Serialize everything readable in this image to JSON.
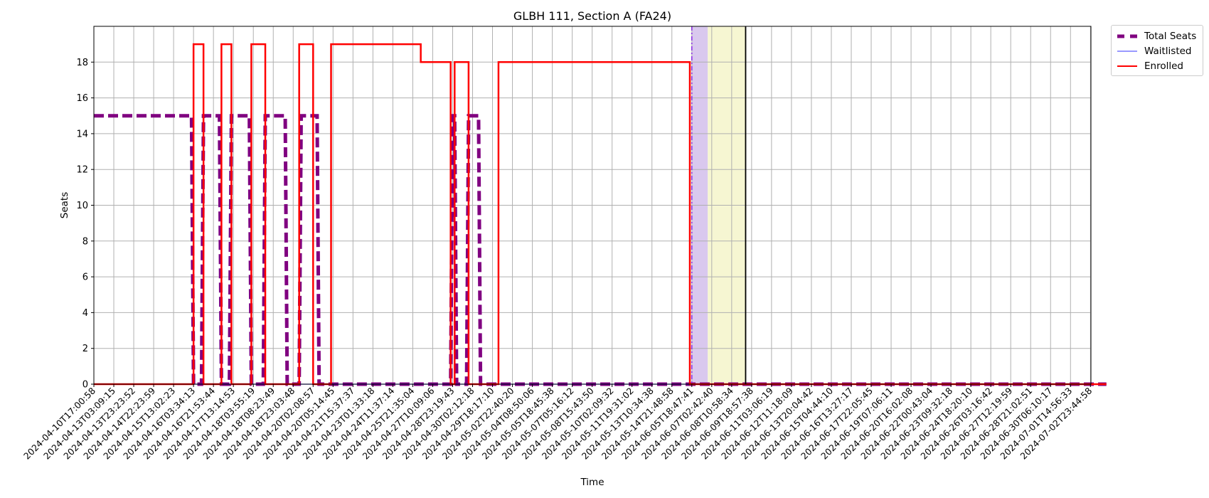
{
  "chart_data": {
    "type": "line",
    "title": "GLBH 111, Section A (FA24)",
    "xlabel": "Time",
    "ylabel": "Seats",
    "ylim": [
      0,
      20
    ],
    "yticks": [
      0,
      2,
      4,
      6,
      8,
      10,
      12,
      14,
      16,
      18
    ],
    "grid": true,
    "legend_position": "outside-top-right",
    "x_ticks": [
      "2024-04-10T17:00:58",
      "2024-04-13T03:09:15",
      "2024-04-13T23:23:52",
      "2024-04-14T22:23:59",
      "2024-04-15T13:02:23",
      "2024-04-16T03:34:13",
      "2024-04-16T21:53:44",
      "2024-04-17T13:14:53",
      "2024-04-18T03:55:19",
      "2024-04-18T08:23:49",
      "2024-04-18T23:03:48",
      "2024-04-20T02:08:57",
      "2024-04-20T05:14:45",
      "2024-04-21T15:37:37",
      "2024-04-23T01:33:18",
      "2024-04-24T11:37:14",
      "2024-04-25T21:35:04",
      "2024-04-27T10:09:06",
      "2024-04-28T23:19:43",
      "2024-04-30T02:12:18",
      "2024-04-29T18:17:10",
      "2024-05-02T22:40:20",
      "2024-05-04T08:50:06",
      "2024-05-05T18:45:38",
      "2024-05-07T05:16:12",
      "2024-05-08T15:43:50",
      "2024-05-10T02:09:32",
      "2024-05-11T19:31:02",
      "2024-05-13T10:34:38",
      "2024-05-14T21:48:58",
      "2024-06-05T18:47:41",
      "2024-06-07T02:42:40",
      "2024-06-08T10:58:34",
      "2024-06-09T18:57:38",
      "2024-06-11T03:06:19",
      "2024-06-12T11:18:09",
      "2024-06-13T20:04:42",
      "2024-06-15T04:44:10",
      "2024-06-16T13:27:17",
      "2024-06-17T22:05:45",
      "2024-06-19T07:06:11",
      "2024-06-20T16:02:08",
      "2024-06-22T00:43:04",
      "2024-06-23T09:32:18",
      "2024-06-24T18:20:10",
      "2024-06-26T03:16:42",
      "2024-06-27T12:19:59",
      "2024-06-28T21:02:51",
      "2024-06-30T06:10:17",
      "2024-07-01T14:56:33",
      "2024-07-02T23:44:58"
    ],
    "series": [
      {
        "name": "Total Seats",
        "color": "#800080",
        "style": "dashed-thick",
        "x_index": [
          0,
          4.9,
          5.0,
          5.4,
          5.5,
          6.3,
          6.4,
          6.8,
          6.9,
          7.8,
          7.9,
          8.5,
          8.6,
          9.6,
          9.7,
          10.3,
          10.4,
          11.2,
          11.3,
          17.9,
          18.0,
          18.1,
          18.2,
          18.7,
          18.8,
          19.3,
          19.4,
          20.3,
          20.4,
          50.8
        ],
        "values": [
          15,
          15,
          0,
          0,
          15,
          15,
          0,
          0,
          15,
          15,
          0,
          0,
          15,
          15,
          0,
          0,
          15,
          15,
          0,
          0,
          15,
          15,
          0,
          0,
          15,
          15,
          0,
          0,
          0,
          0
        ]
      },
      {
        "name": "Waitlisted",
        "color": "#3333ff",
        "style": "solid-thin",
        "x_index": [
          0,
          50.8
        ],
        "values": [
          0,
          0
        ]
      },
      {
        "name": "Enrolled",
        "color": "#ff0000",
        "style": "solid",
        "x_index": [
          0,
          5.0,
          5.0,
          5.5,
          5.5,
          6.4,
          6.4,
          6.9,
          6.9,
          7.9,
          7.9,
          8.6,
          8.6,
          10.3,
          10.3,
          11.0,
          11.0,
          11.9,
          11.9,
          16.4,
          16.4,
          17.9,
          17.9,
          18.1,
          18.1,
          18.8,
          18.8,
          20.3,
          20.3,
          29.9,
          29.9,
          50.8
        ],
        "values": [
          0,
          0,
          19,
          19,
          0,
          0,
          19,
          19,
          0,
          0,
          19,
          19,
          0,
          0,
          19,
          19,
          0,
          0,
          19,
          19,
          18,
          18,
          0,
          0,
          18,
          18,
          0,
          0,
          18,
          18,
          0,
          0
        ]
      }
    ],
    "highlights": [
      {
        "name": "purple-span",
        "x_index_range": [
          30.0,
          30.8
        ],
        "color": "#d9c8ee"
      },
      {
        "name": "yellow-span",
        "x_index_range": [
          30.8,
          32.7
        ],
        "color": "#f6f6d2"
      }
    ],
    "vertical_lines": [
      {
        "name": "now-line",
        "x_index": 32.7,
        "color": "#000000"
      }
    ]
  }
}
